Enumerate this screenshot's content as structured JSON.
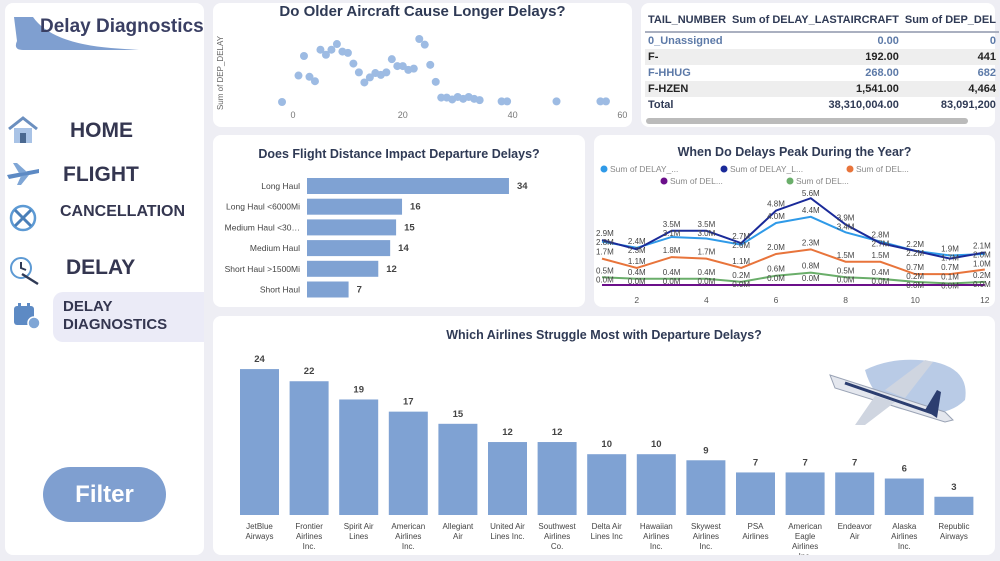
{
  "sidebar": {
    "title": "Delay Diagnostics",
    "items": [
      {
        "label": "HOME",
        "icon": "home-icon"
      },
      {
        "label": "FLIGHT",
        "icon": "airplane-icon"
      },
      {
        "label": "CANCELLATION",
        "icon": "cancelled-flight-icon"
      },
      {
        "label": "DELAY",
        "icon": "clock-airplane-icon"
      },
      {
        "label": "DELAY DIAGNOSTICS",
        "icon": "calendar-clock-icon",
        "active": true
      }
    ],
    "filter_label": "Filter"
  },
  "colors": {
    "bar": "#7fa2d3",
    "scatter": "#9dbbe3",
    "accent": "#7f9fd0"
  },
  "table": {
    "columns": [
      "TAIL_NUMBER",
      "Sum of DELAY_LASTAIRCRAFT",
      "Sum of DEP_DEL"
    ],
    "rows": [
      [
        "0_Unassigned",
        "0.00",
        "0"
      ],
      [
        "F-",
        "192.00",
        "441"
      ],
      [
        "F-HHUG",
        "268.00",
        "682"
      ],
      [
        "F-HZEN",
        "1,541.00",
        "4,464"
      ]
    ],
    "total": [
      "Total",
      "38,310,004.00",
      "83,091,200"
    ]
  },
  "chart_data": [
    {
      "type": "scatter",
      "title": "Do Older Aircraft Cause Longer Delays?",
      "xlabel": "",
      "ylabel": "Sum of DEP_DELAY",
      "xlim": [
        -3,
        60
      ],
      "xticks": [
        0,
        20,
        40,
        60
      ],
      "y_note": "relative, no tick labels",
      "x": [
        -2,
        1,
        2,
        3,
        4,
        5,
        6,
        7,
        8,
        9,
        10,
        11,
        12,
        13,
        14,
        15,
        16,
        17,
        18,
        19,
        20,
        21,
        22,
        23,
        24,
        25,
        26,
        27,
        28,
        29,
        30,
        31,
        32,
        33,
        34,
        38,
        39,
        48,
        56,
        57
      ],
      "y": [
        0,
        42,
        73,
        40,
        33,
        83,
        75,
        83,
        92,
        80,
        78,
        61,
        47,
        31,
        39,
        46,
        43,
        47,
        68,
        57,
        57,
        51,
        53,
        100,
        91,
        59,
        32,
        7,
        7,
        4,
        8,
        5,
        8,
        5,
        3,
        1,
        1,
        1,
        1,
        1
      ]
    },
    {
      "type": "bar",
      "orientation": "horizontal",
      "title": "Does Flight Distance Impact Departure Delays?",
      "categories": [
        "Long Haul",
        "Long Haul <6000Mi",
        "Medium Haul <30…",
        "Medium Haul",
        "Short Haul >1500Mi",
        "Short Haul"
      ],
      "values": [
        34,
        16,
        15,
        14,
        12,
        7
      ]
    },
    {
      "type": "line",
      "title": "When Do Delays Peak During the Year?",
      "xticks": [
        2,
        4,
        6,
        8,
        10,
        12
      ],
      "unit": "M",
      "x": [
        1,
        2,
        3,
        4,
        5,
        6,
        7,
        8,
        9,
        10,
        11,
        12
      ],
      "series": [
        {
          "name": "Sum of DELAY_...",
          "color": "#2f9ae8",
          "values": [
            2.8,
            2.4,
            3.1,
            3.0,
            2.6,
            4.0,
            4.4,
            3.4,
            2.8,
            2.2,
            1.9,
            2.0
          ]
        },
        {
          "name": "Sum of DELAY_L...",
          "color": "#1a2a99",
          "values": [
            2.9,
            2.3,
            3.5,
            3.5,
            2.7,
            4.8,
            5.6,
            3.9,
            2.7,
            2.2,
            1.7,
            2.1
          ]
        },
        {
          "name": "Sum of DEL...",
          "color": "#e8743b",
          "values": [
            1.7,
            1.1,
            1.8,
            1.7,
            1.1,
            2.0,
            2.3,
            1.5,
            1.5,
            0.7,
            0.7,
            1.0
          ]
        },
        {
          "name": "Sum of DEL...",
          "color": "#6b0f8a",
          "values": [
            0.0,
            0.0,
            0.0,
            0.0,
            0.0,
            0.0,
            0.0,
            0.0,
            0.0,
            0.0,
            0.0,
            0.0
          ]
        },
        {
          "name": "Sum of DEL...",
          "color": "#6aae6a",
          "values": [
            0.5,
            0.4,
            0.4,
            0.4,
            0.2,
            0.6,
            0.8,
            0.5,
            0.4,
            0.2,
            0.1,
            0.2
          ]
        }
      ]
    },
    {
      "type": "bar",
      "title": "Which Airlines Struggle Most with Departure Delays?",
      "categories": [
        "JetBlue Airways",
        "Frontier Airlines Inc.",
        "Spirit Air Lines",
        "American Airlines Inc.",
        "Allegiant Air",
        "United Air Lines Inc.",
        "Southwest Airlines Co.",
        "Delta Air Lines Inc",
        "Hawaiian Airlines Inc.",
        "Skywest Airlines Inc.",
        "PSA Airlines",
        "American Eagle Airlines Inc.",
        "Endeavor Air",
        "Alaska Airlines Inc.",
        "Republic Airways"
      ],
      "values": [
        24,
        22,
        19,
        17,
        15,
        12,
        12,
        10,
        10,
        9,
        7,
        7,
        7,
        6,
        3
      ]
    }
  ]
}
